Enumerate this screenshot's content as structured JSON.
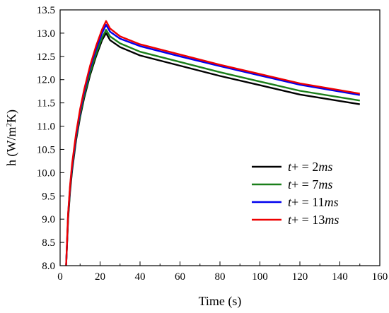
{
  "chart_data": {
    "type": "line",
    "title": "",
    "xlabel": "Time (s)",
    "ylabel_parts": {
      "pre": "h (W/m",
      "sup": "2",
      "post": "K)"
    },
    "xlim": [
      0,
      160
    ],
    "ylim": [
      8.0,
      13.5
    ],
    "xticks": [
      0,
      20,
      40,
      60,
      80,
      100,
      120,
      140,
      160
    ],
    "yticks": [
      "8.0",
      "8.5",
      "9.0",
      "9.5",
      "10.0",
      "10.5",
      "11.0",
      "11.5",
      "12.0",
      "12.5",
      "13.0",
      "13.5"
    ],
    "grid": false,
    "legend_position": "bottom-right",
    "series": [
      {
        "name": "t+ = 2ms",
        "name_parts": {
          "var": "t",
          "mid": "+ = 2",
          "unit": "ms"
        },
        "color": "#000000",
        "x": [
          3,
          4,
          5,
          6,
          8,
          10,
          12,
          15,
          18,
          21,
          23,
          25,
          30,
          40,
          60,
          80,
          100,
          120,
          150
        ],
        "y": [
          8.0,
          9.0,
          9.6,
          10.05,
          10.7,
          11.2,
          11.6,
          12.1,
          12.5,
          12.85,
          13.0,
          12.85,
          12.7,
          12.52,
          12.3,
          12.08,
          11.88,
          11.68,
          11.47
        ]
      },
      {
        "name": "t+ = 7ms",
        "name_parts": {
          "var": "t",
          "mid": "+ = 7",
          "unit": "ms"
        },
        "color": "#1a7f1a",
        "x": [
          3,
          4,
          5,
          6,
          8,
          10,
          12,
          15,
          18,
          21,
          23,
          25,
          30,
          40,
          60,
          80,
          100,
          120,
          150
        ],
        "y": [
          8.0,
          9.05,
          9.65,
          10.1,
          10.75,
          11.25,
          11.65,
          12.15,
          12.55,
          12.9,
          13.07,
          12.93,
          12.78,
          12.6,
          12.38,
          12.16,
          11.96,
          11.76,
          11.55
        ]
      },
      {
        "name": "t+ = 11ms",
        "name_parts": {
          "var": "t",
          "mid": "+ = 11",
          "unit": "ms"
        },
        "color": "#0000ee",
        "x": [
          3,
          4,
          5,
          6,
          8,
          10,
          12,
          15,
          18,
          21,
          23,
          25,
          30,
          40,
          60,
          80,
          100,
          120,
          150
        ],
        "y": [
          8.0,
          9.1,
          9.7,
          10.15,
          10.8,
          11.32,
          11.73,
          12.25,
          12.65,
          13.0,
          13.18,
          13.03,
          12.88,
          12.72,
          12.5,
          12.29,
          12.09,
          11.89,
          11.67
        ]
      },
      {
        "name": "t+ = 13ms",
        "name_parts": {
          "var": "t",
          "mid": "+ = 13",
          "unit": "ms"
        },
        "color": "#ee0000",
        "x": [
          3,
          4,
          5,
          6,
          8,
          10,
          12,
          15,
          18,
          21,
          23,
          25,
          30,
          40,
          60,
          80,
          100,
          120,
          150
        ],
        "y": [
          8.0,
          9.12,
          9.73,
          10.2,
          10.85,
          11.37,
          11.78,
          12.3,
          12.72,
          13.08,
          13.26,
          13.1,
          12.93,
          12.76,
          12.54,
          12.32,
          12.12,
          11.92,
          11.7
        ]
      }
    ]
  }
}
